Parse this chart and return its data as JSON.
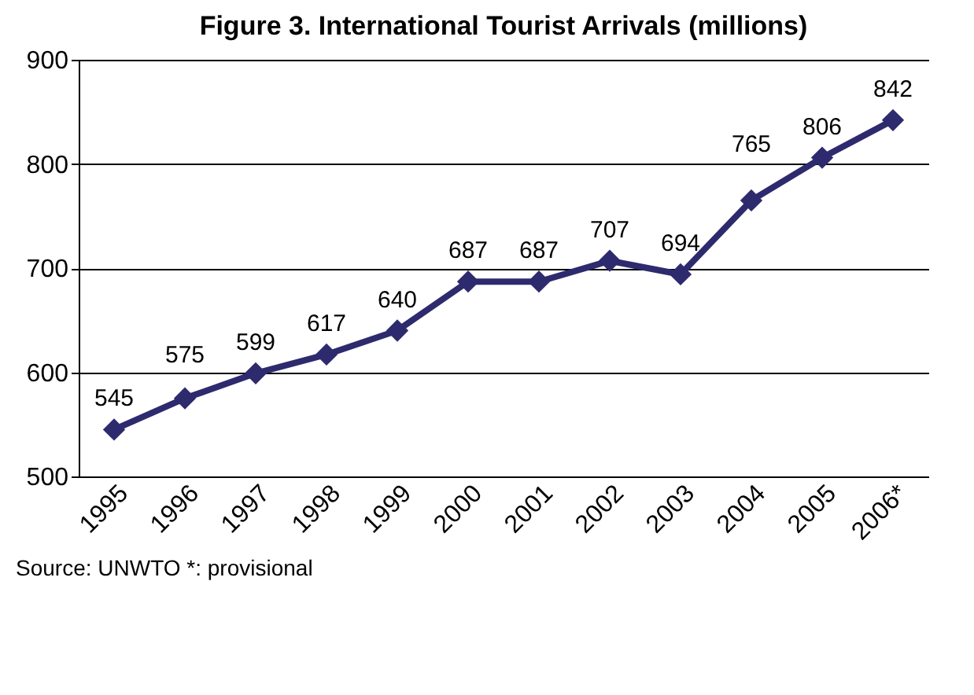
{
  "chart_data": {
    "type": "line",
    "title": "Figure 3. International Tourist Arrivals (millions)",
    "categories": [
      "1995",
      "1996",
      "1997",
      "1998",
      "1999",
      "2000",
      "2001",
      "2002",
      "2003",
      "2004",
      "2005",
      "2006*"
    ],
    "series": [
      {
        "color": "#2e2a6e",
        "values": [
          545,
          575,
          599,
          617,
          640,
          687,
          687,
          707,
          694,
          765,
          806,
          842
        ]
      }
    ],
    "ylim": [
      500,
      900
    ],
    "yticks": [
      500,
      600,
      700,
      800,
      900
    ],
    "grid": "y",
    "marker": "diamond",
    "line_style": "solid",
    "data_labels": true,
    "legend": false,
    "annotations": [
      "Source: UNWTO   *: provisional"
    ]
  }
}
